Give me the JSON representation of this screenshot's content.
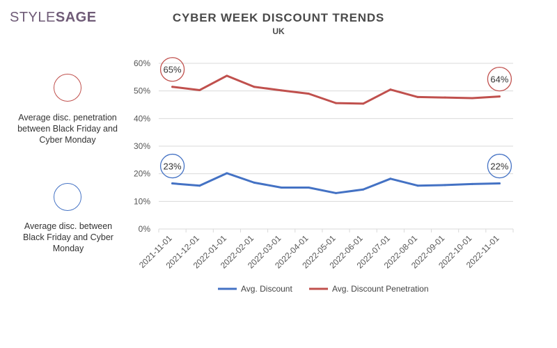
{
  "brand": {
    "part1": "STYLE",
    "part2": "SAGE"
  },
  "sidebar": {
    "penetration_note": "Average disc. penetration between Black Friday and Cyber Monday",
    "discount_note": "Average disc. between Black Friday and Cyber Monday"
  },
  "colors": {
    "discount": "#4472c4",
    "penetration": "#c0504d",
    "grid": "#d9d9d9",
    "brand": "#6f5b77"
  },
  "chart_data": {
    "type": "line",
    "title": "CYBER WEEK DISCOUNT TRENDS",
    "subtitle": "UK",
    "categories": [
      "2021-11-01",
      "2021-12-01",
      "2022-01-01",
      "2022-02-01",
      "2022-03-01",
      "2022-04-01",
      "2022-05-01",
      "2022-06-01",
      "2022-07-01",
      "2022-08-01",
      "2022-09-01",
      "2022-10-01",
      "2022-11-01"
    ],
    "y_ticks": [
      "0%",
      "10%",
      "20%",
      "30%",
      "40%",
      "50%",
      "60%"
    ],
    "ylim": [
      0,
      60
    ],
    "grid": true,
    "legend_position": "bottom",
    "series": [
      {
        "name": "Avg. Discount",
        "color": "#4472c4",
        "values": [
          16.5,
          15.7,
          20.2,
          16.8,
          15.0,
          15.0,
          13.0,
          14.3,
          18.2,
          15.7,
          15.9,
          16.3,
          16.5
        ]
      },
      {
        "name": "Avg. Discount Penetration",
        "color": "#c0504d",
        "values": [
          51.5,
          50.3,
          55.5,
          51.5,
          50.2,
          49.0,
          45.6,
          45.4,
          50.5,
          47.8,
          47.6,
          47.4,
          48.0
        ]
      }
    ],
    "annotations": [
      {
        "label": "65%",
        "series": 1,
        "index": 0,
        "side": "above"
      },
      {
        "label": "64%",
        "series": 1,
        "index": 12,
        "side": "above"
      },
      {
        "label": "23%",
        "series": 0,
        "index": 0,
        "side": "above"
      },
      {
        "label": "22%",
        "series": 0,
        "index": 12,
        "side": "above"
      }
    ]
  }
}
